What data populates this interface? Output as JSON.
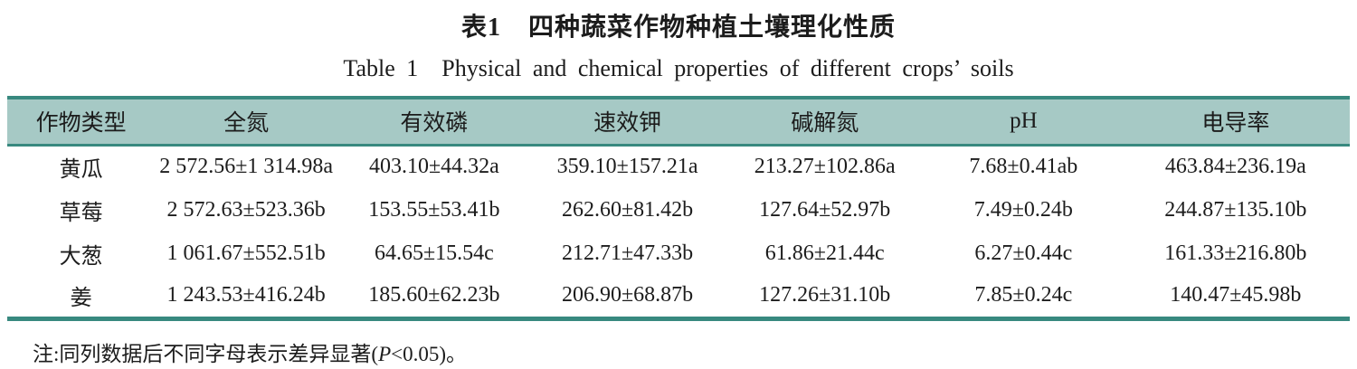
{
  "title": {
    "cn_label": "表1",
    "cn_text": "四种蔬菜作物种植土壤理化性质",
    "en_label": "Table 1",
    "en_text": "Physical and chemical properties of different crops’ soils"
  },
  "table": {
    "columns": [
      "作物类型",
      "全氮",
      "有效磷",
      "速效钾",
      "碱解氮",
      "pH",
      "电导率"
    ],
    "rows": [
      [
        "黄瓜",
        "2 572.56±1 314.98a",
        "403.10±44.32a",
        "359.10±157.21a",
        "213.27±102.86a",
        "7.68±0.41ab",
        "463.84±236.19a"
      ],
      [
        "草莓",
        "2 572.63±523.36b",
        "153.55±53.41b",
        "262.60±81.42b",
        "127.64±52.97b",
        "7.49±0.24b",
        "244.87±135.10b"
      ],
      [
        "大葱",
        "1 061.67±552.51b",
        "64.65±15.54c",
        "212.71±47.33b",
        "61.86±21.44c",
        "6.27±0.44c",
        "161.33±216.80b"
      ],
      [
        "姜",
        "1 243.53±416.24b",
        "185.60±62.23b",
        "206.90±68.87b",
        "127.26±31.10b",
        "7.85±0.24c",
        "140.47±45.98b"
      ]
    ]
  },
  "note": {
    "prefix": "注:同列数据后不同字母表示差异显著(",
    "p": "P",
    "suffix": "<0.05)。"
  },
  "colors": {
    "header_bg": "#a6c9c5",
    "rule": "#38897f"
  }
}
